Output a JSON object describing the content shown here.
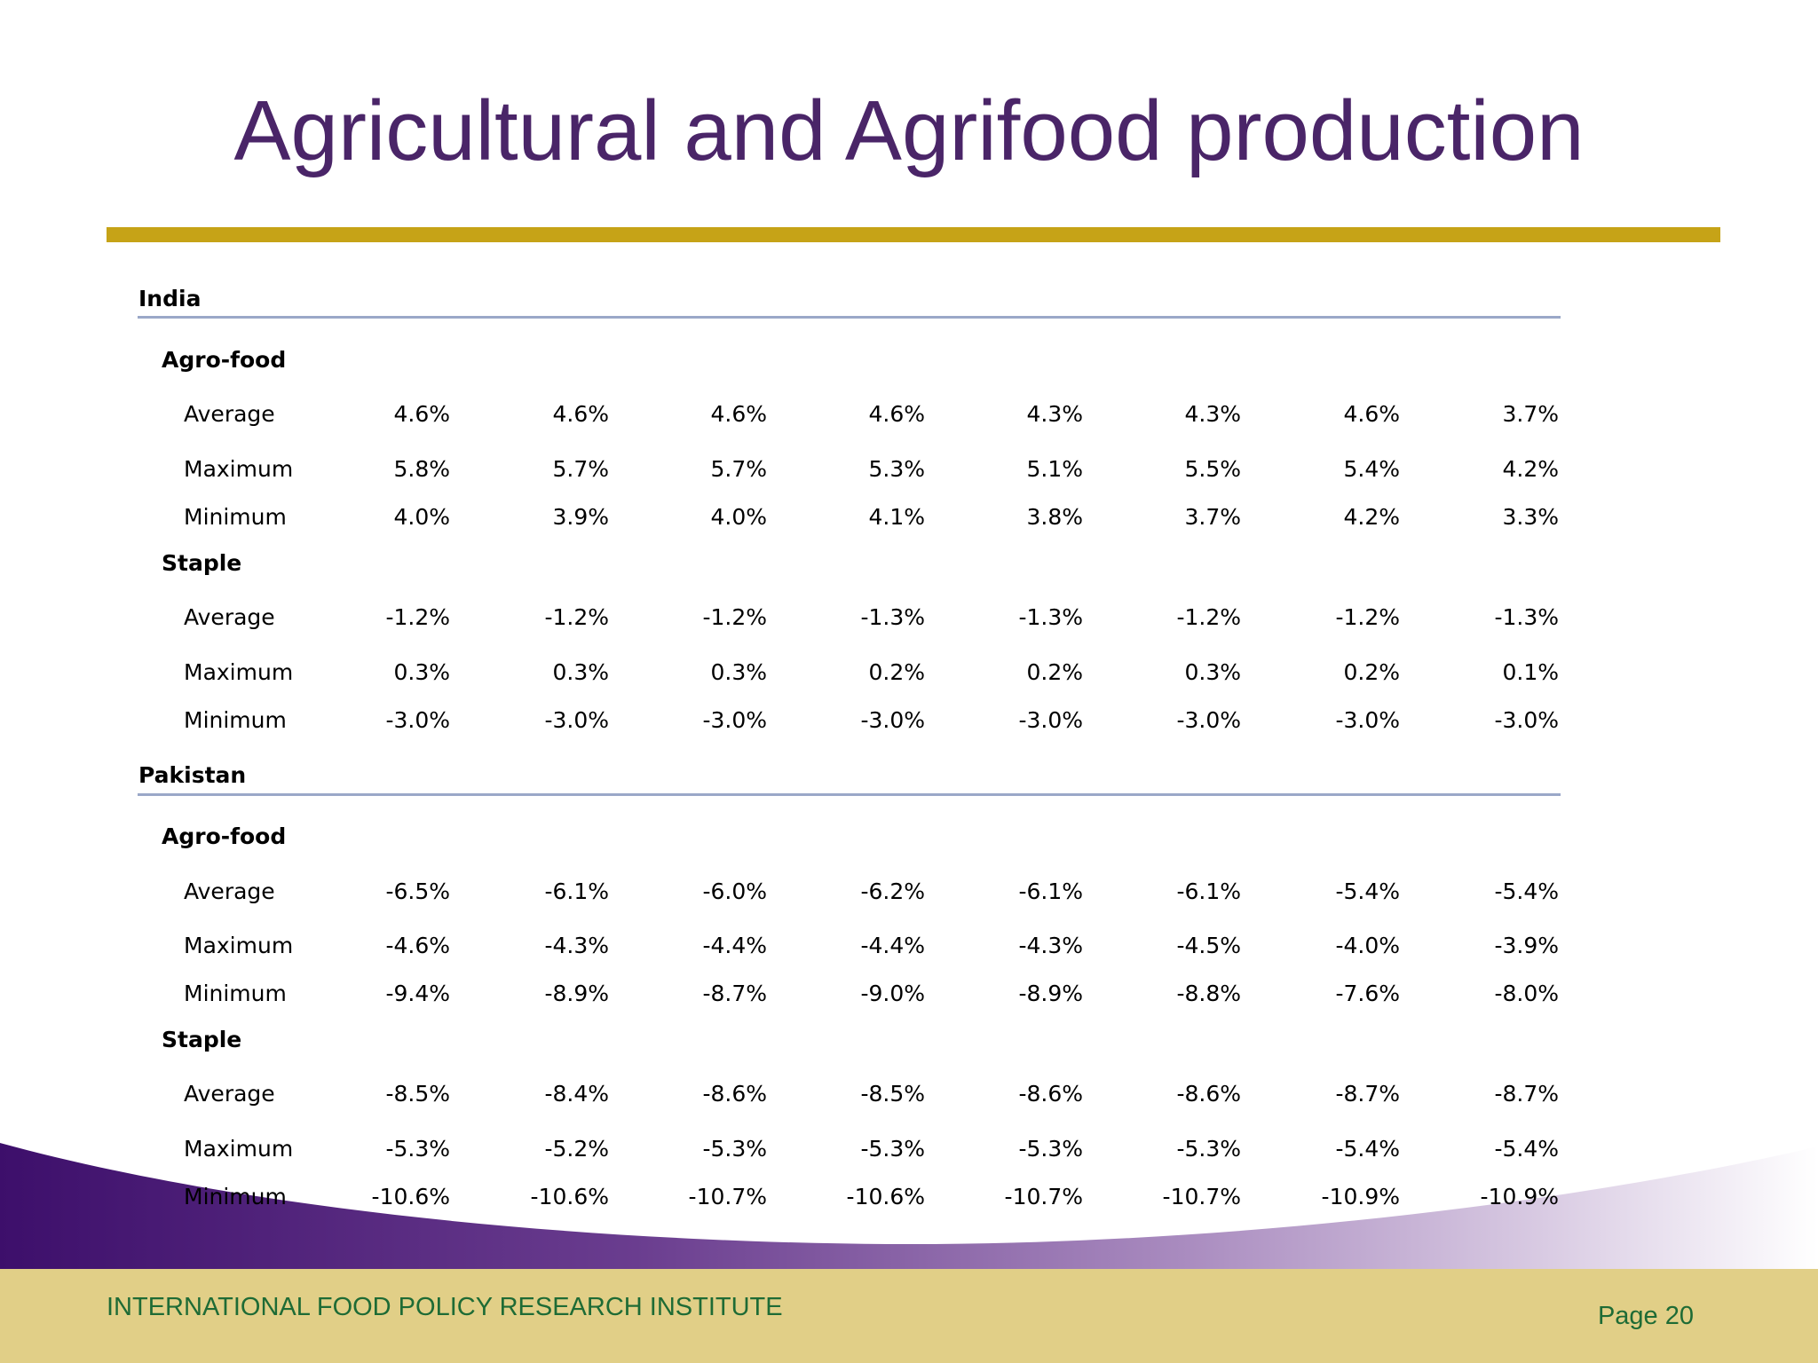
{
  "slide": {
    "title": "Agricultural and Agrifood production",
    "footer_org": "INTERNATIONAL FOOD POLICY RESEARCH INSTITUTE",
    "footer_page": "Page 20"
  },
  "colors": {
    "title": "#4a2568",
    "rule": "#c6a317",
    "footer_bar": "#e1cf87",
    "footer_text": "#1e6b35",
    "swoosh_start": "#3d0f6b",
    "divider": "#9aa8c8"
  },
  "table": {
    "countries": [
      {
        "name": "India",
        "groups": [
          {
            "name": "Agro-food",
            "rows": [
              {
                "label": "Average",
                "values": [
                  "4.6%",
                  "4.6%",
                  "4.6%",
                  "4.6%",
                  "4.3%",
                  "4.3%",
                  "4.6%",
                  "3.7%"
                ]
              },
              {
                "label": "Maximum",
                "values": [
                  "5.8%",
                  "5.7%",
                  "5.7%",
                  "5.3%",
                  "5.1%",
                  "5.5%",
                  "5.4%",
                  "4.2%"
                ]
              },
              {
                "label": "Minimum",
                "values": [
                  "4.0%",
                  "3.9%",
                  "4.0%",
                  "4.1%",
                  "3.8%",
                  "3.7%",
                  "4.2%",
                  "3.3%"
                ]
              }
            ]
          },
          {
            "name": "Staple",
            "rows": [
              {
                "label": "Average",
                "values": [
                  "-1.2%",
                  "-1.2%",
                  "-1.2%",
                  "-1.3%",
                  "-1.3%",
                  "-1.2%",
                  "-1.2%",
                  "-1.3%"
                ]
              },
              {
                "label": "Maximum",
                "values": [
                  "0.3%",
                  "0.3%",
                  "0.3%",
                  "0.2%",
                  "0.2%",
                  "0.3%",
                  "0.2%",
                  "0.1%"
                ]
              },
              {
                "label": "Minimum",
                "values": [
                  "-3.0%",
                  "-3.0%",
                  "-3.0%",
                  "-3.0%",
                  "-3.0%",
                  "-3.0%",
                  "-3.0%",
                  "-3.0%"
                ]
              }
            ]
          }
        ]
      },
      {
        "name": "Pakistan",
        "groups": [
          {
            "name": "Agro-food",
            "rows": [
              {
                "label": "Average",
                "values": [
                  "-6.5%",
                  "-6.1%",
                  "-6.0%",
                  "-6.2%",
                  "-6.1%",
                  "-6.1%",
                  "-5.4%",
                  "-5.4%"
                ]
              },
              {
                "label": "Maximum",
                "values": [
                  "-4.6%",
                  "-4.3%",
                  "-4.4%",
                  "-4.4%",
                  "-4.3%",
                  "-4.5%",
                  "-4.0%",
                  "-3.9%"
                ]
              },
              {
                "label": "Minimum",
                "values": [
                  "-9.4%",
                  "-8.9%",
                  "-8.7%",
                  "-9.0%",
                  "-8.9%",
                  "-8.8%",
                  "-7.6%",
                  "-8.0%"
                ]
              }
            ]
          },
          {
            "name": "Staple",
            "rows": [
              {
                "label": "Average",
                "values": [
                  "-8.5%",
                  "-8.4%",
                  "-8.6%",
                  "-8.5%",
                  "-8.6%",
                  "-8.6%",
                  "-8.7%",
                  "-8.7%"
                ]
              },
              {
                "label": "Maximum",
                "values": [
                  "-5.3%",
                  "-5.2%",
                  "-5.3%",
                  "-5.3%",
                  "-5.3%",
                  "-5.3%",
                  "-5.4%",
                  "-5.4%"
                ]
              },
              {
                "label": "Minimum",
                "values": [
                  "-10.6%",
                  "-10.6%",
                  "-10.7%",
                  "-10.6%",
                  "-10.7%",
                  "-10.7%",
                  "-10.9%",
                  "-10.9%"
                ]
              }
            ]
          }
        ]
      }
    ]
  }
}
